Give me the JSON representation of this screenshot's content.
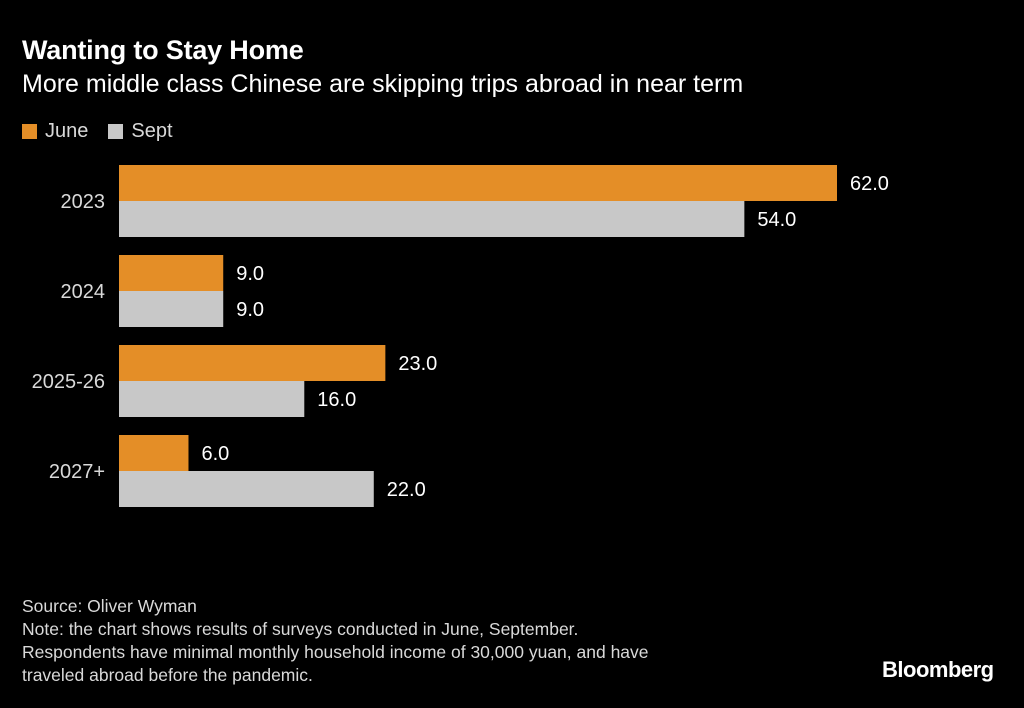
{
  "title": "Wanting to Stay Home",
  "subtitle": "More middle class Chinese are skipping trips abroad in near term",
  "legend": [
    {
      "label": "June",
      "color": "#e48e27"
    },
    {
      "label": "Sept",
      "color": "#c8c8c8"
    }
  ],
  "chart_data": {
    "type": "bar",
    "orientation": "horizontal",
    "categories": [
      "2023",
      "2024",
      "2025-26",
      "2027+"
    ],
    "series": [
      {
        "name": "June",
        "values": [
          62.0,
          9.0,
          23.0,
          6.0
        ],
        "color": "#e48e27"
      },
      {
        "name": "Sept",
        "values": [
          54.0,
          9.0,
          16.0,
          22.0
        ],
        "color": "#c8c8c8"
      }
    ],
    "value_labels": {
      "June": [
        "62.0",
        "9.0",
        "23.0",
        "6.0"
      ],
      "Sept": [
        "54.0",
        "9.0",
        "16.0",
        "22.0"
      ]
    },
    "xlim": [
      0,
      62
    ],
    "title": "Wanting to Stay Home",
    "xlabel": "",
    "ylabel": "",
    "grid": false,
    "legend_position": "top-left"
  },
  "footer": {
    "source": "Source: Oliver Wyman",
    "note_lines": [
      "Note: the chart shows results of surveys conducted in June, September.",
      "Respondents have minimal monthly household income of 30,000 yuan, and have",
      "traveled abroad before the pandemic."
    ]
  },
  "brand": "Bloomberg"
}
